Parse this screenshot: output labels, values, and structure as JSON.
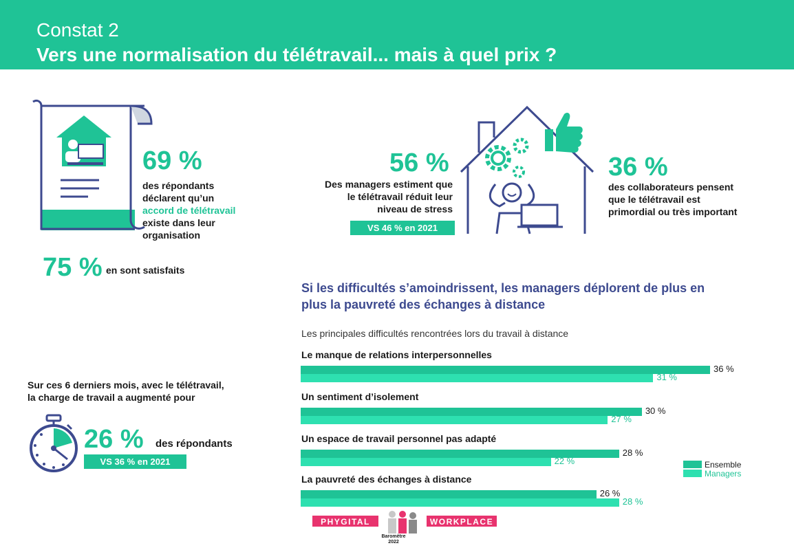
{
  "header": {
    "kicker": "Constat 2",
    "title": "Vers une normalisation du télétravail... mais à quel prix ?"
  },
  "accord": {
    "value": "69 %",
    "line1": "des répondants",
    "line2": "déclarent qu’un",
    "highlight": "accord de télétravail",
    "line4": "existe dans leur",
    "line5": "organisation"
  },
  "satisfied": {
    "value": "75 %",
    "label": "en sont satisfaits"
  },
  "managers_stress": {
    "value": "56 %",
    "line1": "Des managers estiment que",
    "line2": "le télétravail réduit leur",
    "line3": "niveau de stress",
    "badge": "VS 46 % en 2021"
  },
  "collab": {
    "value": "36 %",
    "line1": "des collaborateurs pensent",
    "line2": "que le télétravail est",
    "line3": "primordial ou très important"
  },
  "workload": {
    "line1": "Sur ces 6 derniers mois, avec le télétravail,",
    "line2": "la charge de travail a augmenté pour",
    "value": "26 %",
    "label": "des répondants",
    "badge": "VS 36 % en 2021"
  },
  "section_subtitle": {
    "line1": "Si les difficultés s’amoindrissent, les managers déplorent de plus en",
    "line2": "plus la pauvreté des échanges à distance"
  },
  "colors": {
    "ensemble": "#1fc396",
    "managers": "#2ee0b0",
    "accent": "#1fc396",
    "navy": "#3d4a8f",
    "pink": "#e8336e"
  },
  "icons": [
    "document-house-icon",
    "house-gears-icon",
    "thumbs-up-icon",
    "stopwatch-icon"
  ],
  "chart_data": {
    "type": "bar",
    "orientation": "horizontal",
    "title": "Les principales difficultés rencontrées lors du travail à distance",
    "categories": [
      "Le manque de relations interpersonnelles",
      "Un sentiment d’isolement",
      "Un espace de travail personnel pas adapté",
      "La pauvreté des échanges à distance"
    ],
    "series": [
      {
        "name": "Ensemble",
        "values": [
          36,
          30,
          28,
          26
        ],
        "labels": [
          "36 %",
          "30 %",
          "28 %",
          "26 %"
        ]
      },
      {
        "name": "Managers",
        "values": [
          31,
          27,
          22,
          28
        ],
        "labels": [
          "31 %",
          "27 %",
          "22 %",
          "28 %"
        ]
      }
    ],
    "xlim": [
      0,
      36
    ],
    "legend_position": "right",
    "grid": false
  },
  "logo": {
    "left": "PHYGITAL",
    "right": "WORKPLACE",
    "line1": "Baromètre",
    "line2": "2022"
  }
}
